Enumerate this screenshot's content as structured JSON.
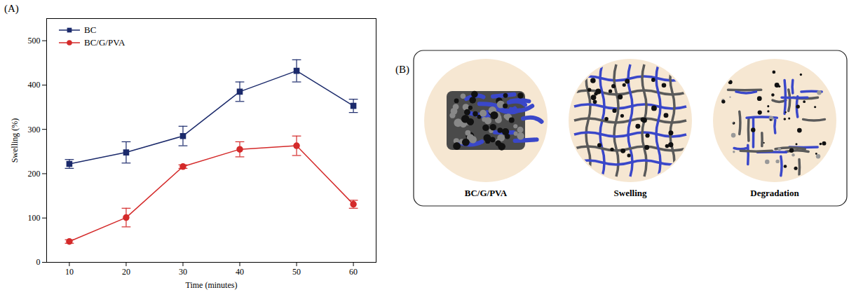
{
  "chart_data": {
    "type": "line",
    "panel": "(A)",
    "x_label": "Time (minutes)",
    "y_label": "Swelling (%)",
    "x": [
      10,
      20,
      30,
      40,
      50,
      60
    ],
    "series": [
      {
        "name": "BC",
        "color": "#1b2a6b",
        "marker": "square",
        "line_style": "solid",
        "values": [
          222,
          248,
          285,
          385,
          432,
          353
        ],
        "errors": [
          10,
          24,
          22,
          22,
          25,
          15
        ]
      },
      {
        "name": "BC/G/PVA",
        "color": "#d42a2a",
        "marker": "circle",
        "line_style": "solid",
        "values": [
          47,
          101,
          216,
          255,
          263,
          131
        ],
        "errors": [
          4,
          21,
          4,
          17,
          22,
          9
        ]
      }
    ],
    "xlim": [
      6,
      64
    ],
    "xticks": [
      10,
      20,
      30,
      40,
      50,
      60
    ],
    "ylim": [
      0,
      550
    ],
    "yticks": [
      0,
      100,
      200,
      300,
      400,
      500
    ],
    "grid": false,
    "legend": "upper left"
  },
  "diagram": {
    "panel": "(B)",
    "stages": [
      "BC/G/PVA",
      "Swelling",
      "Degradation"
    ]
  }
}
